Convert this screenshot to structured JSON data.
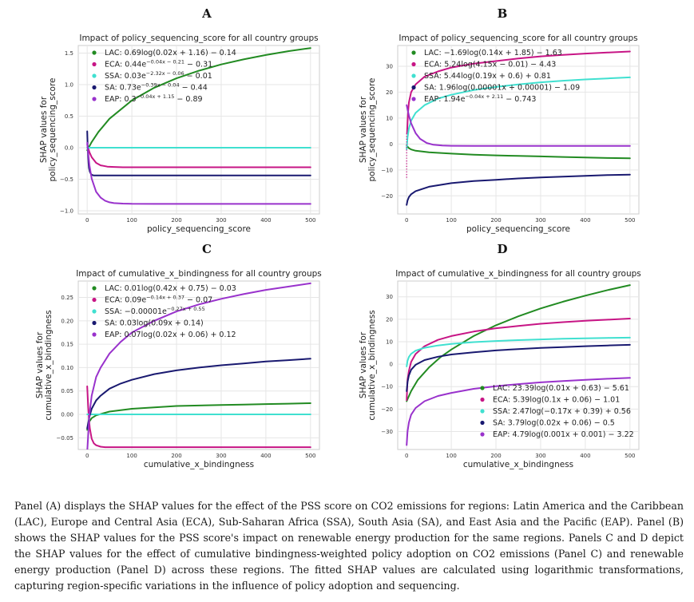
{
  "caption": "Panel (A) displays the SHAP values for the effect of the PSS score on CO2 emissions for regions: Latin America and the Caribbean (LAC), Europe and Central Asia (ECA), Sub-Saharan Africa (SSA), South Asia (SA), and East Asia and the Pacific (EAP). Panel (B) shows the SHAP values for the PSS score's impact on renewable energy production for the same regions. Panels C and D depict the SHAP values for the effect of cumulative bindingness-weighted policy adoption on CO2 emissions (Panel C) and renewable energy production (Panel D) across these regions. The fitted SHAP values are calculated using logarithmic transformations, capturing region-specific variations in the influence of policy adoption and sequencing.",
  "colors": {
    "LAC": "#228B22",
    "ECA": "#C71585",
    "SSA": "#40E0D0",
    "SA": "#191970",
    "EAP": "#9932CC"
  },
  "chart_data": [
    {
      "panel": "A",
      "type": "line",
      "title": "Impact of policy_sequencing_score for all country groups",
      "xlabel": "policy_sequencing_score",
      "ylabel": "SHAP values for policy_sequencing_score",
      "xlim": [
        -20,
        520
      ],
      "ylim": [
        -1.05,
        1.62
      ],
      "xticks": [
        0,
        100,
        200,
        300,
        400,
        500
      ],
      "yticks": [
        -1.0,
        -0.5,
        0.0,
        0.5,
        1.0,
        1.5
      ],
      "ytick_labels": [
        "−1.0",
        "−0.5",
        "0.0",
        "0.5",
        "1.0",
        "1.5"
      ],
      "grid": true,
      "legend_position": "top-left",
      "series": [
        {
          "name": "LAC",
          "label": "LAC: 0.69log(0.02x + 1.16) − 0.14",
          "x": [
            0,
            10,
            25,
            50,
            100,
            150,
            200,
            250,
            300,
            350,
            400,
            450,
            500
          ],
          "y": [
            -0.04,
            0.09,
            0.25,
            0.46,
            0.75,
            0.95,
            1.1,
            1.22,
            1.32,
            1.4,
            1.47,
            1.53,
            1.58
          ]
        },
        {
          "name": "ECA",
          "label": "ECA: 0.44e^(−0.04x − 0.21) − 0.31",
          "x": [
            0,
            5,
            10,
            20,
            30,
            45,
            60,
            80,
            100,
            200,
            300,
            400,
            500
          ],
          "y": [
            0.05,
            -0.07,
            -0.15,
            -0.24,
            -0.28,
            -0.3,
            -0.305,
            -0.31,
            -0.31,
            -0.31,
            -0.31,
            -0.31,
            -0.31
          ]
        },
        {
          "name": "SSA",
          "label": "SSA: 0.03e^(−2.32x − 0.06) − 0.01",
          "x": [
            0,
            500
          ],
          "y": [
            0.0,
            0.0
          ]
        },
        {
          "name": "SA",
          "label": "SA: 0.73e^(−0.39x − 0.04) − 0.44",
          "x": [
            0,
            1,
            2,
            3,
            4,
            6,
            8,
            10,
            15,
            30,
            100,
            500
          ],
          "y": [
            0.26,
            0.05,
            -0.12,
            -0.25,
            -0.32,
            -0.38,
            -0.41,
            -0.43,
            -0.44,
            -0.44,
            -0.44,
            -0.44
          ]
        },
        {
          "name": "EAP",
          "label": "EAP: 0.3^(−0.04x + 1.15) − 0.89",
          "x": [
            0,
            5,
            10,
            20,
            30,
            40,
            50,
            60,
            80,
            100,
            150,
            200,
            300,
            400,
            500
          ],
          "y": [
            0.08,
            -0.28,
            -0.49,
            -0.7,
            -0.79,
            -0.84,
            -0.865,
            -0.878,
            -0.886,
            -0.889,
            -0.89,
            -0.89,
            -0.89,
            -0.89,
            -0.89
          ]
        }
      ]
    },
    {
      "panel": "B",
      "type": "line",
      "title": "Impact of policy_sequencing_score for all country groups",
      "xlabel": "policy_sequencing_score",
      "ylabel": "SHAP values for policy_sequencing_score",
      "xlim": [
        -20,
        520
      ],
      "ylim": [
        -27,
        38
      ],
      "xticks": [
        0,
        100,
        200,
        300,
        400,
        500
      ],
      "yticks": [
        -20,
        -10,
        0,
        10,
        20,
        30
      ],
      "ytick_labels": [
        "−20",
        "−10",
        "0",
        "10",
        "20",
        "30"
      ],
      "grid": true,
      "legend_position": "top-left",
      "series": [
        {
          "name": "LAC",
          "label": "LAC: −1.69log(0.14x + 1.85) − 1.63",
          "x": [
            0,
            5,
            10,
            20,
            50,
            100,
            150,
            200,
            250,
            300,
            350,
            400,
            450,
            500
          ],
          "y": [
            -0.7,
            -1.6,
            -2.1,
            -2.6,
            -3.2,
            -3.7,
            -4.1,
            -4.4,
            -4.6,
            -4.8,
            -5.0,
            -5.2,
            -5.4,
            -5.5
          ]
        },
        {
          "name": "ECA",
          "label": "ECA: 5.24log(4.15x − 0.01) − 4.43",
          "x": [
            1,
            3,
            5,
            10,
            20,
            40,
            70,
            100,
            150,
            200,
            250,
            300,
            350,
            400,
            450,
            500
          ],
          "y": [
            4.0,
            12.0,
            16.0,
            20.0,
            23.0,
            26.0,
            28.0,
            29.5,
            31.0,
            32.0,
            33.0,
            33.8,
            34.4,
            34.9,
            35.3,
            35.7
          ]
        },
        {
          "name": "SSA",
          "label": "SSA: 5.44log(0.19x + 0.6) + 0.81",
          "x": [
            0,
            2,
            5,
            10,
            20,
            40,
            70,
            100,
            150,
            200,
            250,
            300,
            350,
            400,
            450,
            500
          ],
          "y": [
            -2.0,
            2.5,
            6.0,
            9.0,
            12.0,
            15.0,
            17.5,
            19.0,
            20.8,
            22.0,
            23.0,
            23.8,
            24.4,
            24.9,
            25.3,
            25.7
          ]
        },
        {
          "name": "SA",
          "label": "SA: 1.96log(0.00001x + 0.00001) − 1.09",
          "x": [
            0,
            2,
            5,
            10,
            20,
            50,
            100,
            150,
            200,
            250,
            300,
            350,
            400,
            450,
            500
          ],
          "y": [
            -23.5,
            -21.8,
            -20.5,
            -19.4,
            -18.2,
            -16.5,
            -15.1,
            -14.3,
            -13.8,
            -13.3,
            -12.9,
            -12.6,
            -12.3,
            -12.0,
            -11.8
          ]
        },
        {
          "name": "EAP",
          "label": "EAP: 1.94e^(−0.04x + 2.11) − 0.743",
          "x": [
            0,
            5,
            10,
            20,
            30,
            45,
            60,
            80,
            100,
            150,
            200,
            300,
            400,
            500
          ],
          "y": [
            15.0,
            11.0,
            8.0,
            4.2,
            2.0,
            0.4,
            -0.3,
            -0.6,
            -0.7,
            -0.74,
            -0.74,
            -0.74,
            -0.74,
            -0.74
          ]
        }
      ],
      "dotted_segment": {
        "name": "ECA",
        "x": [
          0,
          0,
          0,
          0
        ],
        "y": [
          -13,
          -6,
          0,
          4
        ]
      }
    },
    {
      "panel": "C",
      "type": "line",
      "title": "Impact of cumulative_x_bindingness for all country groups",
      "xlabel": "cumulative_x_bindingness",
      "ylabel": "SHAP values for cumulative_x_bindingness",
      "xlim": [
        -20,
        520
      ],
      "ylim": [
        -0.075,
        0.285
      ],
      "xticks": [
        0,
        100,
        200,
        300,
        400,
        500
      ],
      "yticks": [
        -0.05,
        0.0,
        0.05,
        0.1,
        0.15,
        0.2,
        0.25
      ],
      "ytick_labels": [
        "−0.05",
        "0.00",
        "0.05",
        "0.10",
        "0.15",
        "0.20",
        "0.25"
      ],
      "grid": true,
      "legend_position": "top-left",
      "series": [
        {
          "name": "LAC",
          "label": "LAC: 0.01log(0.42x + 0.75) − 0.03",
          "x": [
            0,
            5,
            10,
            20,
            50,
            100,
            150,
            200,
            250,
            300,
            350,
            400,
            450,
            500
          ],
          "y": [
            -0.033,
            -0.015,
            -0.008,
            -0.002,
            0.006,
            0.012,
            0.015,
            0.018,
            0.019,
            0.02,
            0.021,
            0.022,
            0.023,
            0.024
          ]
        },
        {
          "name": "ECA",
          "label": "ECA: 0.09e^(−0.14x + 0.37) − 0.07",
          "x": [
            0,
            2,
            4,
            6,
            10,
            15,
            20,
            30,
            40,
            60,
            100,
            500
          ],
          "y": [
            0.06,
            0.02,
            -0.01,
            -0.03,
            -0.052,
            -0.062,
            -0.066,
            -0.069,
            -0.07,
            -0.07,
            -0.07,
            -0.07
          ]
        },
        {
          "name": "SSA",
          "label": "SSA: −0.00001e^(−0.27x + 0.55)",
          "x": [
            0,
            500
          ],
          "y": [
            0.0,
            0.0
          ]
        },
        {
          "name": "SA",
          "label": "SA: 0.03log(0.09x + 0.14)",
          "x": [
            0,
            5,
            10,
            20,
            30,
            50,
            75,
            100,
            150,
            200,
            250,
            300,
            350,
            400,
            450,
            500
          ],
          "y": [
            -0.03,
            -0.005,
            0.012,
            0.03,
            0.04,
            0.055,
            0.066,
            0.074,
            0.086,
            0.094,
            0.1,
            0.105,
            0.109,
            0.113,
            0.116,
            0.119
          ]
        },
        {
          "name": "EAP",
          "label": "EAP: 0.07log(0.02x + 0.06) + 0.12",
          "x": [
            0,
            5,
            10,
            20,
            30,
            50,
            75,
            100,
            150,
            200,
            250,
            300,
            350,
            400,
            450,
            500
          ],
          "y": [
            -0.08,
            0.0,
            0.04,
            0.08,
            0.1,
            0.13,
            0.155,
            0.175,
            0.2,
            0.22,
            0.235,
            0.247,
            0.257,
            0.266,
            0.273,
            0.28
          ]
        }
      ]
    },
    {
      "panel": "D",
      "type": "line",
      "title": "Impact of cumulative_x_bindingness for all country groups",
      "xlabel": "cumulative_x_bindingness",
      "ylabel": "SHAP values for cumulative_x_bindingness",
      "xlim": [
        -20,
        520
      ],
      "ylim": [
        -38,
        37
      ],
      "xticks": [
        0,
        100,
        200,
        300,
        400,
        500
      ],
      "yticks": [
        -30,
        -20,
        -10,
        0,
        10,
        20,
        30
      ],
      "ytick_labels": [
        "−30",
        "−20",
        "−10",
        "0",
        "10",
        "20",
        "30"
      ],
      "grid": true,
      "legend_position": "bottom-right",
      "series": [
        {
          "name": "LAC",
          "label": "LAC: 23.39log(0.01x + 0.63) − 5.61",
          "x": [
            0,
            10,
            25,
            50,
            75,
            100,
            150,
            200,
            250,
            300,
            350,
            400,
            450,
            500
          ],
          "y": [
            -16.5,
            -12.0,
            -7.0,
            -1.5,
            3.0,
            6.5,
            12.5,
            17.3,
            21.3,
            24.8,
            27.8,
            30.5,
            33.0,
            35.2
          ]
        },
        {
          "name": "ECA",
          "label": "ECA: 5.39log(0.1x + 0.06) − 1.01",
          "x": [
            0,
            2,
            5,
            10,
            20,
            40,
            70,
            100,
            150,
            200,
            250,
            300,
            350,
            400,
            450,
            500
          ],
          "y": [
            -16.0,
            -7.0,
            -3.0,
            1.0,
            4.5,
            8.0,
            10.8,
            12.5,
            14.5,
            16.0,
            17.0,
            18.0,
            18.7,
            19.3,
            19.8,
            20.3
          ]
        },
        {
          "name": "SSA",
          "label": "SSA: 2.47log(−0.17x + 0.39) + 0.56",
          "x": [
            0,
            2,
            5,
            10,
            20,
            40,
            70,
            100,
            150,
            200,
            250,
            300,
            350,
            400,
            450,
            500
          ],
          "y": [
            -1.0,
            1.5,
            3.2,
            4.6,
            6.0,
            7.3,
            8.3,
            9.0,
            9.8,
            10.3,
            10.7,
            11.0,
            11.3,
            11.5,
            11.7,
            11.8
          ]
        },
        {
          "name": "SA",
          "label": "SA: 3.79log(0.02x + 0.06) − 0.5",
          "x": [
            0,
            2,
            5,
            10,
            20,
            40,
            70,
            100,
            150,
            200,
            250,
            300,
            350,
            400,
            450,
            500
          ],
          "y": [
            -12.0,
            -8.0,
            -5.0,
            -2.5,
            -0.3,
            1.8,
            3.3,
            4.3,
            5.3,
            6.1,
            6.7,
            7.2,
            7.6,
            8.0,
            8.3,
            8.6
          ]
        },
        {
          "name": "EAP",
          "label": "EAP: 4.79log(0.001x + 0.001) − 3.22",
          "x": [
            0,
            2,
            5,
            10,
            20,
            40,
            70,
            100,
            150,
            200,
            250,
            300,
            350,
            400,
            450,
            500
          ],
          "y": [
            -36.0,
            -30.0,
            -26.0,
            -22.5,
            -19.5,
            -16.5,
            -14.2,
            -12.8,
            -11.0,
            -9.8,
            -8.9,
            -8.1,
            -7.5,
            -7.0,
            -6.5,
            -6.1
          ]
        }
      ]
    }
  ]
}
